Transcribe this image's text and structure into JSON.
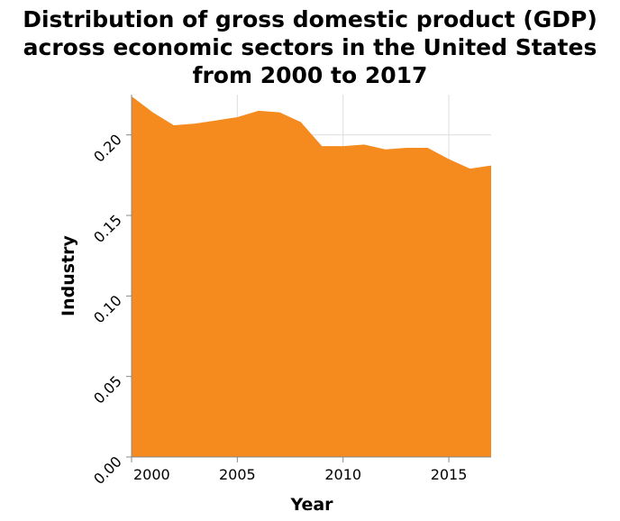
{
  "chart_data": {
    "type": "area",
    "title_lines": [
      "Distribution of gross domestic product (GDP)",
      "across economic sectors in the United States",
      "from 2000 to 2017"
    ],
    "xlabel": "Year",
    "ylabel": "Industry",
    "x_ticks": [
      2000,
      2005,
      2010,
      2015
    ],
    "y_ticks": [
      "0.00",
      "0.05",
      "0.10",
      "0.15",
      "0.20"
    ],
    "xlim": [
      2000,
      2017
    ],
    "ylim": [
      0,
      0.225
    ],
    "grid": true,
    "legend": "none",
    "fill_color": "#f58a1f",
    "series": [
      {
        "x": [
          2000,
          2001,
          2002,
          2003,
          2004,
          2005,
          2006,
          2007,
          2008,
          2009,
          2010,
          2011,
          2012,
          2013,
          2014,
          2015,
          2016,
          2017
        ],
        "values": [
          0.224,
          0.214,
          0.206,
          0.207,
          0.209,
          0.211,
          0.215,
          0.214,
          0.208,
          0.193,
          0.193,
          0.194,
          0.191,
          0.192,
          0.192,
          0.185,
          0.179,
          0.181
        ]
      }
    ]
  }
}
